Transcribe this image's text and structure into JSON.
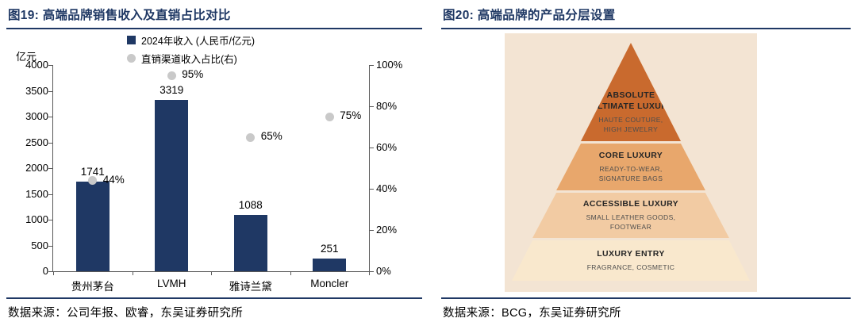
{
  "colors": {
    "accent_navy": "#1F3864",
    "bar": "#1F3864",
    "dot": "#C9C9C9",
    "axis_line": "#595959",
    "pyramid_bg": "#F3E4D3"
  },
  "left_panel": {
    "title": "图19:  高端品牌销售收入及直销占比对比",
    "source": "数据来源：公司年报、欧睿，东吴证券研究所"
  },
  "right_panel": {
    "title": "图20:  高端品牌的产品分层设置",
    "source": "数据来源：BCG，东吴证券研究所"
  },
  "chart_data": [
    {
      "type": "bar",
      "title": "高端品牌销售收入及直销占比对比",
      "categories": [
        "贵州茅台",
        "LVMH",
        "雅诗兰黛",
        "Moncler"
      ],
      "series": [
        {
          "name": "2024年收入 (人民币/亿元)",
          "type": "bar",
          "axis": "left",
          "values": [
            1741,
            3319,
            1088,
            251
          ]
        },
        {
          "name": "直销渠道收入占比(右)",
          "type": "scatter",
          "axis": "right",
          "values": [
            44,
            95,
            65,
            75
          ],
          "value_labels": [
            "44%",
            "95%",
            "65%",
            "75%"
          ]
        }
      ],
      "bar_value_labels": [
        "1741",
        "3319",
        "1088",
        "251"
      ],
      "left_axis": {
        "title": "亿元",
        "min": 0,
        "max": 4000,
        "tick_step": 500,
        "ticks": [
          "4000",
          "3500",
          "3000",
          "2500",
          "2000",
          "1500",
          "1000",
          "500",
          "0"
        ]
      },
      "right_axis": {
        "min": 0,
        "max": 100,
        "tick_step": 20,
        "ticks": [
          "100%",
          "80%",
          "60%",
          "40%",
          "20%",
          "0%"
        ]
      },
      "grid": false,
      "legend_position": "top"
    },
    {
      "type": "pyramid",
      "title": "高端品牌的产品分层设置",
      "tiers": [
        {
          "label": "ABSOLUTE\n/ULTIMATE LUXURY",
          "sublabel": "HAUTE COUTURE,\nHIGH JEWELRY",
          "color": "#C96A2E"
        },
        {
          "label": "CORE LUXURY",
          "sublabel": "READY-TO-WEAR,\nSIGNATURE BAGS",
          "color": "#E8A76C"
        },
        {
          "label": "ACCESSIBLE LUXURY",
          "sublabel": "SMALL LEATHER GOODS,\nFOOTWEAR",
          "color": "#F2CBA3"
        },
        {
          "label": "LUXURY ENTRY",
          "sublabel": "FRAGRANCE, COSMETIC",
          "color": "#F9E8CD"
        }
      ]
    }
  ]
}
